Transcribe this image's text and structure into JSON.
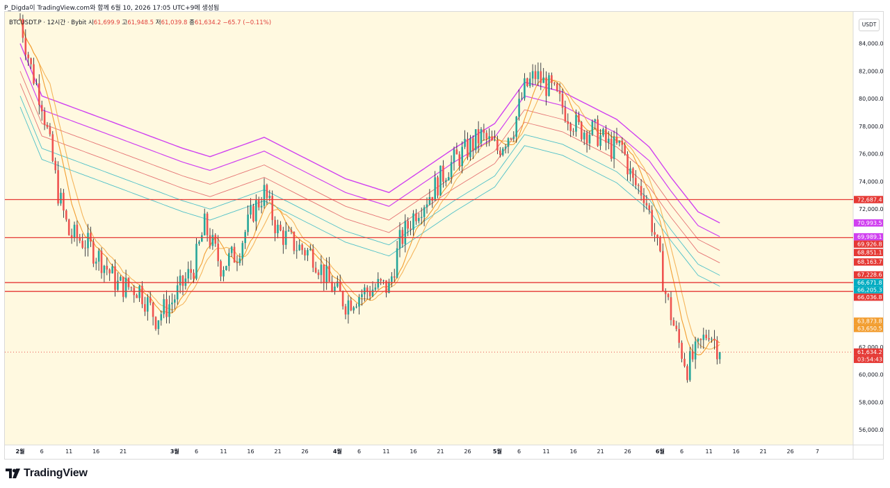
{
  "header": {
    "title": "P_Digda이 TradingView.com와 함께 6월 10, 2026 17:05 UTC+9에 생성됨"
  },
  "symbol": {
    "name": "BTCUSDT.P · 12시간 · Bybit",
    "o_label": "시",
    "o": "61,699.9",
    "h_label": "고",
    "h": "61,948.5",
    "l_label": "저",
    "l": "61,039.8",
    "c_label": "종",
    "c": "61,634.2",
    "change": "−65.7 (−0.11%)"
  },
  "currency": "USDT",
  "chart_data": {
    "type": "candlestick",
    "price_axis": {
      "min": 54900,
      "max": 86300,
      "ticks": [
        84000,
        82000,
        80000,
        78000,
        76000,
        74000,
        72000,
        62000,
        60000,
        58000,
        56000
      ],
      "tick_labels": [
        "84,000.0",
        "82,000.0",
        "80,000.0",
        "78,000.0",
        "76,000.0",
        "74,000.0",
        "72,000.0",
        "62,000.0",
        "60,000.0",
        "58,000.0",
        "56,000.0"
      ]
    },
    "time_axis": {
      "labels": [
        "2월",
        "6",
        "11",
        "16",
        "21",
        "3월",
        "6",
        "11",
        "16",
        "21",
        "26",
        "4월",
        "6",
        "11",
        "16",
        "21",
        "26",
        "5월",
        "6",
        "11",
        "16",
        "21",
        "26",
        "6월",
        "6",
        "11",
        "16",
        "21",
        "26",
        "7"
      ],
      "bold": [
        "2월",
        "3월",
        "4월",
        "5월",
        "6월"
      ],
      "bar_index": [
        0,
        8,
        18,
        28,
        38,
        57,
        65,
        75,
        85,
        95,
        105,
        117,
        125,
        135,
        145,
        155,
        165,
        176,
        184,
        194,
        204,
        214,
        224,
        236,
        244,
        254,
        264,
        274,
        284,
        294
      ]
    },
    "horizontal_levels": [
      72687.4,
      69926.8,
      66671.8,
      66036.8
    ],
    "horizontal_level_color": "#e53935",
    "last_price": 61634.2,
    "countdown": "03:54:43",
    "price_tags": [
      {
        "value": 72687.4,
        "label": "72,687.4",
        "color": "#e53935"
      },
      {
        "value": 70993.5,
        "label": "70,993.5",
        "color": "#d040f0"
      },
      {
        "value": 69989.1,
        "label": "69,989.1",
        "color": "#d040f0"
      },
      {
        "value": 69926.8,
        "label": "69,926.8",
        "color": "#e53935"
      },
      {
        "value": 68851.1,
        "label": "68,851.1",
        "color": "#e53935"
      },
      {
        "value": 68163.7,
        "label": "68,163.7",
        "color": "#e53935"
      },
      {
        "value": 67228.6,
        "label": "67,228.6",
        "color": "#e53935"
      },
      {
        "value": 66671.8,
        "label": "66,671.8",
        "color": "#00acc1"
      },
      {
        "value": 66205.3,
        "label": "66,205.3",
        "color": "#00acc1"
      },
      {
        "value": 66036.8,
        "label": "66,036.8",
        "color": "#e53935"
      },
      {
        "value": 63873.8,
        "label": "63,873.8",
        "color": "#f29d2f"
      },
      {
        "value": 63650.5,
        "label": "63,650.5",
        "color": "#f29d2f"
      },
      {
        "value": 61634.2,
        "label": "61,634.2",
        "color": "#e53935"
      }
    ],
    "series_colors": {
      "up": "#26a69a",
      "down": "#ef5350",
      "band_outer": "#d040f0",
      "band_mid": "#e57373",
      "band_inner": "#4dc0c8",
      "ma": "#f29d2f"
    },
    "anchors": [
      [
        0,
        85800
      ],
      [
        4,
        82200
      ],
      [
        8,
        79800
      ],
      [
        11,
        76500
      ],
      [
        14,
        73200
      ],
      [
        18,
        70200
      ],
      [
        24,
        69600
      ],
      [
        30,
        68300
      ],
      [
        36,
        66500
      ],
      [
        44,
        66200
      ],
      [
        50,
        64100
      ],
      [
        56,
        65300
      ],
      [
        64,
        67800
      ],
      [
        68,
        70800
      ],
      [
        74,
        67900
      ],
      [
        80,
        68800
      ],
      [
        86,
        71900
      ],
      [
        90,
        73200
      ],
      [
        95,
        70400
      ],
      [
        102,
        69300
      ],
      [
        108,
        68700
      ],
      [
        114,
        66600
      ],
      [
        120,
        65200
      ],
      [
        126,
        65900
      ],
      [
        132,
        66400
      ],
      [
        136,
        66300
      ],
      [
        140,
        69600
      ],
      [
        146,
        71900
      ],
      [
        152,
        73300
      ],
      [
        158,
        75100
      ],
      [
        164,
        76200
      ],
      [
        170,
        77300
      ],
      [
        176,
        76300
      ],
      [
        182,
        78000
      ],
      [
        186,
        80700
      ],
      [
        190,
        81700
      ],
      [
        196,
        80600
      ],
      [
        200,
        79400
      ],
      [
        206,
        77800
      ],
      [
        212,
        77600
      ],
      [
        218,
        76400
      ],
      [
        222,
        76500
      ],
      [
        226,
        73900
      ],
      [
        230,
        73200
      ],
      [
        234,
        70200
      ],
      [
        238,
        65900
      ],
      [
        242,
        62800
      ],
      [
        246,
        60500
      ],
      [
        250,
        61800
      ],
      [
        254,
        63300
      ],
      [
        258,
        61634
      ]
    ],
    "bands": {
      "ma_lag": 4,
      "outer_base": [
        [
          0,
          84000
        ],
        [
          8,
          80200
        ],
        [
          30,
          78600
        ],
        [
          60,
          76400
        ],
        [
          70,
          75800
        ],
        [
          90,
          77200
        ],
        [
          120,
          74200
        ],
        [
          136,
          73200
        ],
        [
          160,
          76400
        ],
        [
          175,
          78200
        ],
        [
          186,
          81200
        ],
        [
          200,
          80500
        ],
        [
          220,
          78500
        ],
        [
          232,
          76500
        ],
        [
          240,
          74300
        ],
        [
          250,
          71800
        ],
        [
          258,
          71000
        ]
      ]
    },
    "indicators_note": ""
  }
}
